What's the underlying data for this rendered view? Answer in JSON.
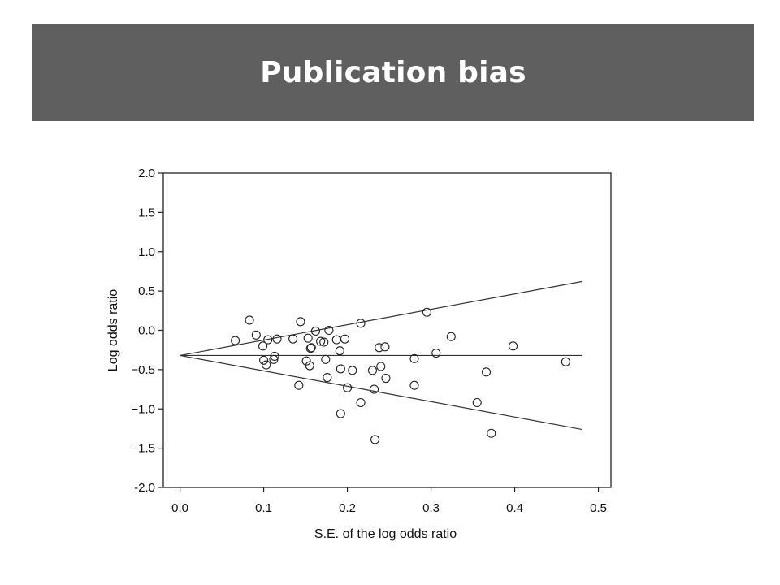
{
  "slide": {
    "title": "Publication bias",
    "title_bar_color": "#5f5f5f"
  },
  "chart_data": {
    "type": "scatter",
    "xlabel": "S.E. of the log odds ratio",
    "ylabel": "Log odds ratio",
    "xlim": [
      -0.02,
      0.515
    ],
    "ylim": [
      -2.0,
      2.0
    ],
    "x_ticks": [
      0.0,
      0.1,
      0.2,
      0.3,
      0.4,
      0.5
    ],
    "x_tick_labels": [
      "0.0",
      "0.1",
      "0.2",
      "0.3",
      "0.4",
      "0.5"
    ],
    "y_ticks": [
      2.0,
      1.5,
      1.0,
      0.5,
      0.0,
      -0.5,
      -1.0,
      -1.5,
      -2.0
    ],
    "y_tick_labels": [
      "2.0",
      "1.5",
      "1.0",
      "0.5",
      "0.0",
      "−0.5",
      "−1.0",
      "−1.5",
      "-2.0"
    ],
    "grid": false,
    "marker": "open-circle",
    "pooled_estimate": -0.32,
    "funnel_lines": [
      {
        "from": [
          0.0,
          -0.32
        ],
        "to": [
          0.48,
          0.62
        ]
      },
      {
        "from": [
          0.0,
          -0.32
        ],
        "to": [
          0.48,
          -1.26
        ]
      },
      {
        "from": [
          0.0,
          -0.32
        ],
        "to": [
          0.48,
          -0.32
        ]
      }
    ],
    "points": [
      [
        0.066,
        -0.13
      ],
      [
        0.083,
        0.13
      ],
      [
        0.091,
        -0.06
      ],
      [
        0.099,
        -0.2
      ],
      [
        0.1,
        -0.38
      ],
      [
        0.103,
        -0.44
      ],
      [
        0.105,
        -0.12
      ],
      [
        0.112,
        -0.37
      ],
      [
        0.113,
        -0.33
      ],
      [
        0.116,
        -0.11
      ],
      [
        0.135,
        -0.11
      ],
      [
        0.142,
        -0.7
      ],
      [
        0.144,
        0.11
      ],
      [
        0.151,
        -0.39
      ],
      [
        0.153,
        -0.1
      ],
      [
        0.155,
        -0.45
      ],
      [
        0.156,
        -0.23
      ],
      [
        0.157,
        -0.22
      ],
      [
        0.162,
        -0.01
      ],
      [
        0.168,
        -0.14
      ],
      [
        0.172,
        -0.15
      ],
      [
        0.174,
        -0.37
      ],
      [
        0.176,
        -0.6
      ],
      [
        0.178,
        0.0
      ],
      [
        0.187,
        -0.12
      ],
      [
        0.191,
        -0.26
      ],
      [
        0.192,
        -0.49
      ],
      [
        0.192,
        -1.06
      ],
      [
        0.197,
        -0.11
      ],
      [
        0.2,
        -0.73
      ],
      [
        0.206,
        -0.51
      ],
      [
        0.216,
        -0.92
      ],
      [
        0.216,
        0.09
      ],
      [
        0.23,
        -0.51
      ],
      [
        0.232,
        -0.75
      ],
      [
        0.233,
        -1.39
      ],
      [
        0.238,
        -0.22
      ],
      [
        0.24,
        -0.46
      ],
      [
        0.245,
        -0.21
      ],
      [
        0.246,
        -0.61
      ],
      [
        0.28,
        -0.36
      ],
      [
        0.28,
        -0.7
      ],
      [
        0.295,
        0.23
      ],
      [
        0.306,
        -0.29
      ],
      [
        0.324,
        -0.08
      ],
      [
        0.355,
        -0.92
      ],
      [
        0.366,
        -0.53
      ],
      [
        0.372,
        -1.31
      ],
      [
        0.398,
        -0.2
      ],
      [
        0.461,
        -0.4
      ]
    ]
  }
}
